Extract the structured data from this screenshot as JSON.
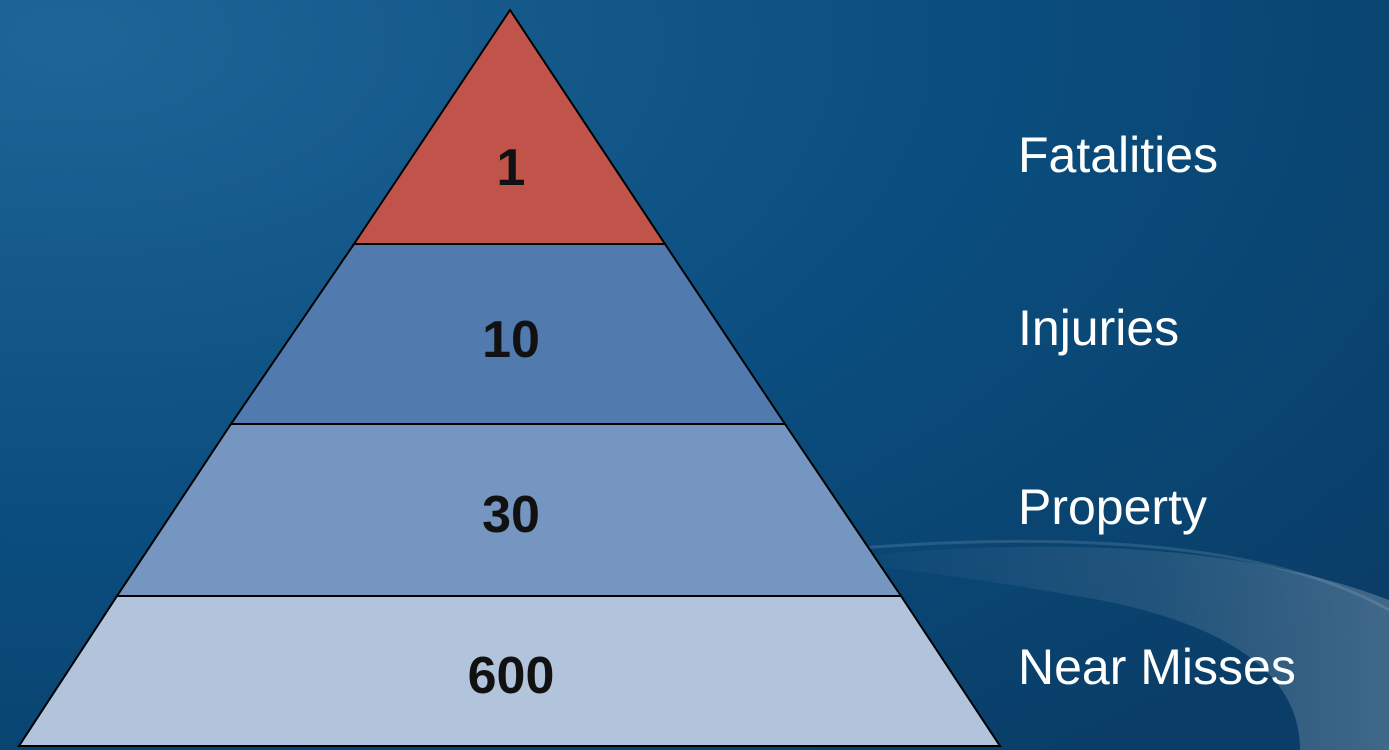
{
  "pyramid": {
    "tiers": [
      {
        "value": "1",
        "label": "Fatalities",
        "color": "#c0534a"
      },
      {
        "value": "10",
        "label": "Injuries",
        "color": "#517bae"
      },
      {
        "value": "30",
        "label": "Property",
        "color": "#7596c1"
      },
      {
        "value": "600",
        "label": "Near Misses",
        "color": "#b2c3dc"
      }
    ]
  },
  "theme": {
    "background": "#0b4b7c",
    "label_color": "#ffffff",
    "outline_color": "#000000"
  }
}
